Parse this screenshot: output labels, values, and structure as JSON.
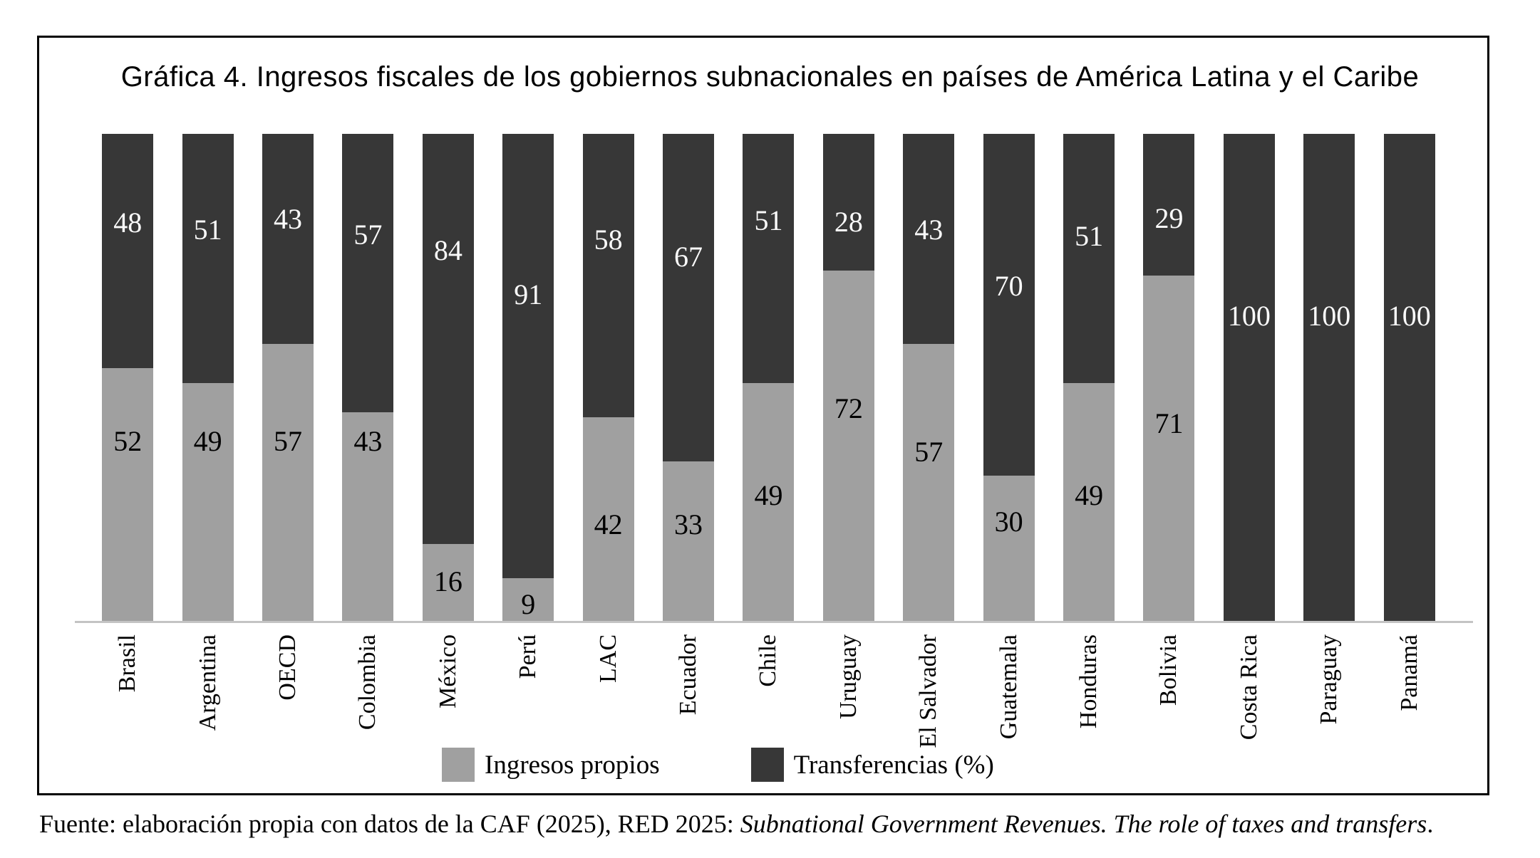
{
  "page": {
    "background": "#ffffff",
    "frame_border_color": "#000000"
  },
  "chart_data": {
    "type": "bar",
    "stacked": true,
    "orientation": "vertical",
    "title": "Gráfica 4. Ingresos fiscales de los gobiernos subnacionales en países de América Latina y el Caribe",
    "categories": [
      "Brasil",
      "Argentina",
      "OECD",
      "Colombia",
      "México",
      "Perú",
      "LAC",
      "Ecuador",
      "Chile",
      "Uruguay",
      "El Salvador",
      "Guatemala",
      "Honduras",
      "Bolivia",
      "Costa Rica",
      "Paraguay",
      "Panamá"
    ],
    "series": [
      {
        "name": "Ingresos propios",
        "color": "#a0a0a0",
        "label_color": "#000000",
        "values": [
          52,
          49,
          57,
          43,
          16,
          9,
          42,
          33,
          49,
          72,
          57,
          30,
          49,
          71,
          0,
          0,
          0
        ],
        "label_y_pct": [
          63,
          63,
          63,
          63,
          91.7,
          96.4,
          80,
          80,
          74.1,
          56.3,
          65.2,
          79.4,
          74.1,
          59.3,
          null,
          null,
          null
        ]
      },
      {
        "name": "Transferencias (%)",
        "color": "#373737",
        "label_color": "#fafafa",
        "values": [
          48,
          51,
          43,
          57,
          84,
          91,
          58,
          67,
          51,
          28,
          43,
          70,
          51,
          29,
          100,
          100,
          100
        ],
        "label_y_pct": [
          18.2,
          19.7,
          17.5,
          20.7,
          23.9,
          32.9,
          21.7,
          25.2,
          17.8,
          18.1,
          19.7,
          31.2,
          21,
          17.3,
          37.3,
          37.3,
          37.3
        ]
      }
    ],
    "ylim": [
      0,
      100
    ],
    "y_axis_visible": false,
    "gridlines": false,
    "axis_line_color": "#c4c4c4",
    "legend_position": "bottom"
  },
  "footer": {
    "prefix": "Fuente: elaboración propia con datos de la CAF (2025), RED 2025: ",
    "italic": "Subnational Government Revenues. The role of taxes and transfers",
    "suffix": "."
  }
}
